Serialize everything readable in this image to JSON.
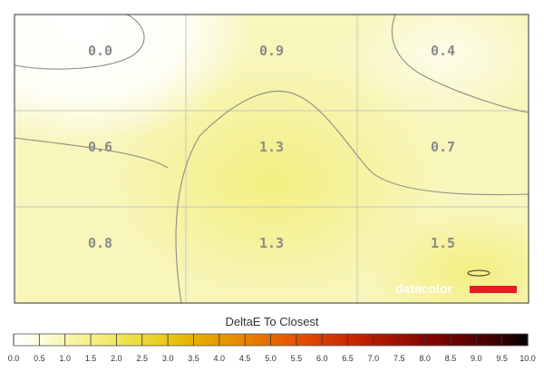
{
  "chart_data": {
    "type": "heatmap",
    "rows": 3,
    "cols": 3,
    "values": [
      [
        0.0,
        0.9,
        0.4
      ],
      [
        0.6,
        1.3,
        0.7
      ],
      [
        0.8,
        1.3,
        1.5
      ]
    ],
    "labels": [
      [
        "0.0",
        "0.9",
        "0.4"
      ],
      [
        "0.6",
        "1.3",
        "0.7"
      ],
      [
        "0.8",
        "1.3",
        "1.5"
      ]
    ],
    "grid": true,
    "colorbar": {
      "title": "DeltaE To Closest",
      "range": [
        0,
        10
      ],
      "ticks": [
        "0.0",
        "0.5",
        "1.0",
        "1.5",
        "2.0",
        "2.5",
        "3.0",
        "3.5",
        "4.0",
        "4.5",
        "5.0",
        "5.5",
        "6.0",
        "6.5",
        "7.0",
        "7.5",
        "8.0",
        "8.5",
        "9.0",
        "9.5",
        "10.0"
      ],
      "colors": [
        "#ffffff",
        "#fdfde0",
        "#faf6b0",
        "#f6ef8a",
        "#f1e660",
        "#ecd836",
        "#e9c716",
        "#e6b000",
        "#e79a00",
        "#e98300",
        "#e86b00",
        "#e45200",
        "#d93d00",
        "#c82a00",
        "#b51b00",
        "#9e0f00",
        "#860600",
        "#6e0200",
        "#520000",
        "#350000",
        "#000000"
      ]
    }
  },
  "branding": {
    "logo_text": "datacolor",
    "accent_color": "#e51c23"
  }
}
